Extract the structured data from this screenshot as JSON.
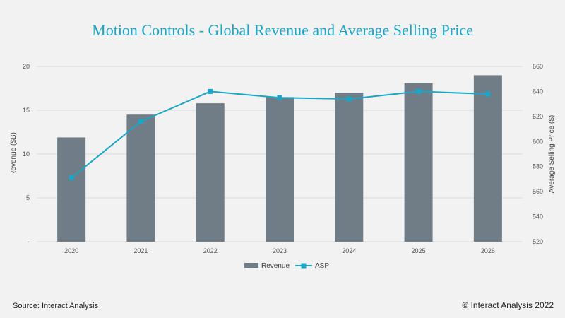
{
  "title": "Motion Controls - Global Revenue and Average Selling Price",
  "source": "Source: Interact Analysis",
  "copyright": "© Interact Analysis 2022",
  "colors": {
    "bar": "#707d86",
    "line": "#1aa6c8",
    "title": "#1aa6c8",
    "grid": "#d9d9d9"
  },
  "chart_data": {
    "type": "bar",
    "categories": [
      "2020",
      "2021",
      "2022",
      "2023",
      "2024",
      "2025",
      "2026"
    ],
    "series": [
      {
        "name": "Revenue",
        "type": "bar",
        "axis": "left",
        "values": [
          11.9,
          14.5,
          15.8,
          16.5,
          17.0,
          18.1,
          19.0
        ]
      },
      {
        "name": "ASP",
        "type": "line",
        "axis": "right",
        "values": [
          571,
          616,
          640,
          635,
          634,
          640,
          638
        ]
      }
    ],
    "ylabel": "Revenue ($B)",
    "y2label": "Average Selling Price ($)",
    "ylim": [
      0,
      20
    ],
    "y2lim": [
      520,
      660
    ],
    "yticks": [
      "-",
      "5",
      "10",
      "15",
      "20"
    ],
    "y2ticks": [
      "520",
      "540",
      "560",
      "580",
      "600",
      "620",
      "640",
      "660"
    ],
    "grid": true,
    "legend_position": "bottom"
  }
}
